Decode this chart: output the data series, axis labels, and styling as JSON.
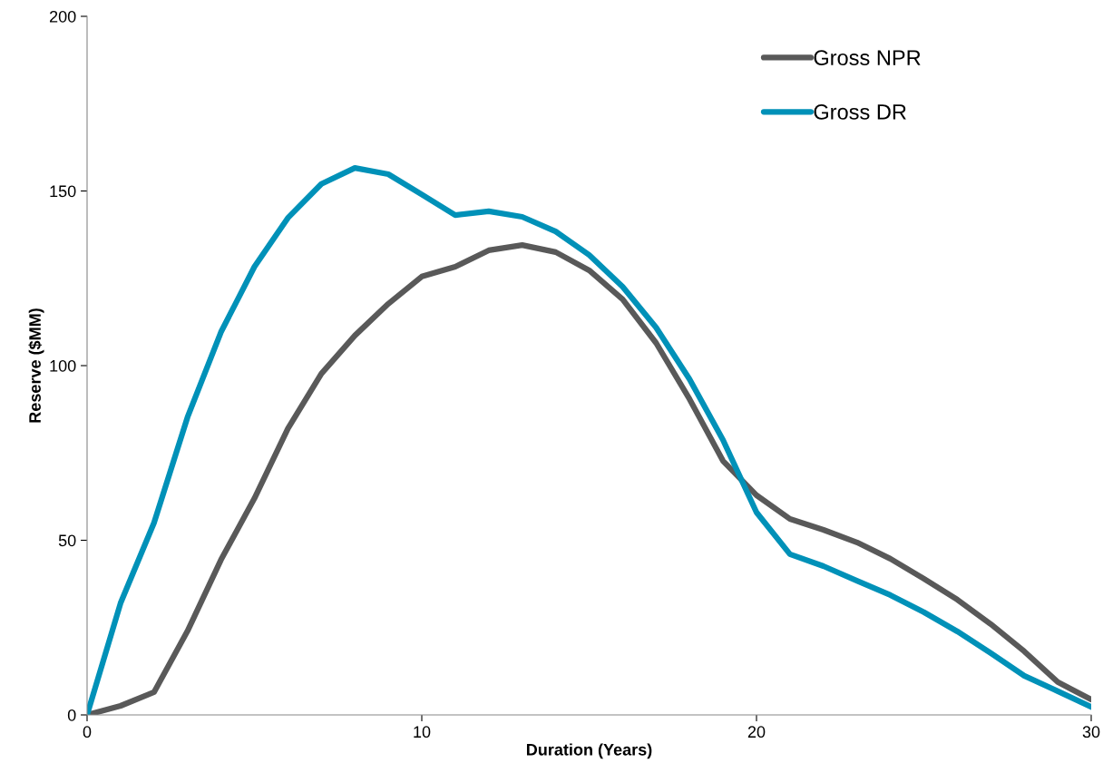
{
  "chart_data": {
    "type": "line",
    "xlabel": "Duration (Years)",
    "ylabel": "Reserve ($MM)",
    "x": [
      0,
      1,
      2,
      3,
      4,
      5,
      6,
      7,
      8,
      9,
      10,
      11,
      12,
      13,
      14,
      15,
      16,
      17,
      18,
      19,
      20,
      21,
      22,
      23,
      24,
      25,
      26,
      27,
      28,
      29,
      30
    ],
    "series": [
      {
        "name": "Gross NPR",
        "color": "#595959",
        "values": [
          0,
          2.6,
          6.5,
          24,
          44.4,
          62,
          82,
          97.7,
          108.6,
          117.7,
          125.5,
          128.3,
          133,
          134.5,
          132.5,
          127.3,
          119,
          106.5,
          90.4,
          72.7,
          62.9,
          56.1,
          53,
          49.4,
          44.7,
          39,
          33,
          26,
          18.2,
          9.4,
          4.4
        ]
      },
      {
        "name": "Gross DR",
        "color": "#0091b8",
        "values": [
          0,
          32,
          55,
          85.2,
          109.6,
          128.3,
          142.3,
          152,
          156.6,
          154.8,
          149,
          143.1,
          144.2,
          142.6,
          138.4,
          131.7,
          122.6,
          110.9,
          96.1,
          78.7,
          58,
          46,
          42.6,
          38.4,
          34.3,
          29.4,
          23.9,
          17.7,
          11.2,
          6.8,
          2.3
        ]
      }
    ],
    "xlim": [
      0,
      30
    ],
    "xticks": [
      0,
      10,
      20,
      30
    ],
    "ylim": [
      0,
      200
    ],
    "yticks": [
      0,
      50,
      100,
      150,
      200
    ],
    "grid": false,
    "legend": "top right",
    "marker": "none",
    "line_style": "solid"
  }
}
